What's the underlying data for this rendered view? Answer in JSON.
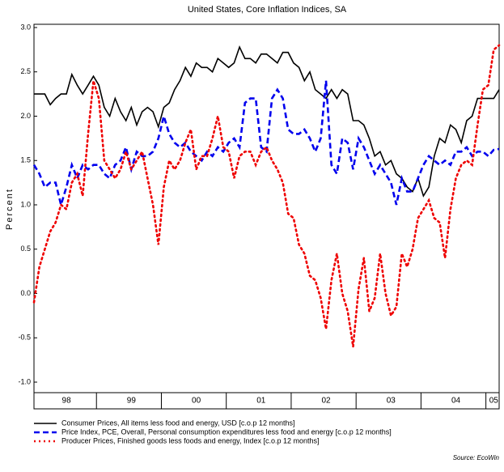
{
  "chart_data": {
    "type": "line",
    "subtitle": "United States, Core Inflation Indices, SA",
    "y_label": "Percent",
    "source": "Source: EcoWin",
    "categories": [
      null,
      null,
      null,
      null,
      null,
      null,
      "98",
      null,
      null,
      null,
      null,
      null,
      null,
      null,
      null,
      null,
      null,
      null,
      "99",
      null,
      null,
      null,
      null,
      null,
      null,
      null,
      null,
      null,
      null,
      null,
      "00",
      null,
      null,
      null,
      null,
      null,
      null,
      null,
      null,
      null,
      null,
      null,
      "01",
      null,
      null,
      null,
      null,
      null,
      null,
      null,
      null,
      null,
      null,
      null,
      "02",
      null,
      null,
      null,
      null,
      null,
      null,
      null,
      null,
      null,
      null,
      null,
      "03",
      null,
      null,
      null,
      null,
      null,
      null,
      null,
      null,
      null,
      null,
      null,
      "04",
      null,
      null,
      null,
      null,
      null,
      null,
      "05",
      null
    ],
    "ylim": [
      -1.0,
      3.0
    ],
    "yticks": [
      {
        "value": 3.0,
        "label": "3.0"
      },
      {
        "value": 2.5,
        "label": "2.5"
      },
      {
        "value": 2.0,
        "label": "2.0"
      },
      {
        "value": 1.5,
        "label": "1.5"
      },
      {
        "value": 1.0,
        "label": "1.0"
      },
      0.5,
      {
        "value": 0.0,
        "label": "0.0"
      },
      -0.5,
      {
        "value": -1.0,
        "label": "-1.0"
      }
    ],
    "series": [
      {
        "name": "Consumer Prices, All items less food and energy, USD [c.o.p 12 months]",
        "color": "#000000",
        "dash": "solid",
        "values": [
          2.25,
          2.25,
          2.25,
          2.13,
          2.2,
          2.25,
          2.25,
          2.47,
          2.35,
          2.25,
          2.35,
          2.45,
          2.35,
          2.1,
          2.0,
          2.2,
          2.05,
          1.95,
          2.1,
          1.9,
          2.05,
          2.1,
          2.05,
          1.88,
          2.1,
          2.15,
          2.3,
          2.4,
          2.55,
          2.45,
          2.6,
          2.55,
          2.55,
          2.5,
          2.65,
          2.6,
          2.55,
          2.6,
          2.78,
          2.65,
          2.65,
          2.6,
          2.7,
          2.7,
          2.65,
          2.6,
          2.72,
          2.72,
          2.6,
          2.55,
          2.4,
          2.5,
          2.3,
          2.25,
          2.2,
          2.3,
          2.2,
          2.3,
          2.25,
          1.95,
          1.95,
          1.9,
          1.75,
          1.55,
          1.6,
          1.45,
          1.5,
          1.35,
          1.3,
          1.2,
          1.15,
          1.3,
          1.1,
          1.2,
          1.55,
          1.75,
          1.7,
          1.9,
          1.85,
          1.7,
          1.95,
          2.0,
          2.2,
          2.2,
          2.2,
          2.2,
          2.3
        ]
      },
      {
        "name": "Price Index, PCE, Overall, Personal consumption expenditures less food and energy [c.o.p 12 months]",
        "color": "#0000ee",
        "dash": "dashed",
        "values": [
          1.45,
          1.35,
          1.2,
          1.25,
          1.25,
          1.0,
          1.2,
          1.45,
          1.3,
          1.45,
          1.4,
          1.45,
          1.45,
          1.35,
          1.3,
          1.45,
          1.5,
          1.65,
          1.4,
          1.6,
          1.55,
          1.55,
          1.6,
          1.75,
          2.0,
          1.8,
          1.7,
          1.65,
          1.7,
          1.6,
          1.55,
          1.5,
          1.6,
          1.55,
          1.65,
          1.6,
          1.7,
          1.75,
          1.65,
          2.15,
          2.2,
          2.2,
          1.65,
          1.6,
          2.2,
          2.3,
          2.2,
          1.85,
          1.8,
          1.8,
          1.85,
          1.75,
          1.6,
          1.75,
          2.4,
          1.45,
          1.35,
          1.75,
          1.7,
          1.4,
          1.75,
          1.65,
          1.5,
          1.35,
          1.45,
          1.35,
          1.25,
          1.0,
          1.3,
          1.15,
          1.15,
          1.3,
          1.45,
          1.55,
          1.5,
          1.45,
          1.5,
          1.45,
          1.6,
          1.6,
          1.65,
          1.55,
          1.6,
          1.6,
          1.55,
          1.62,
          1.63
        ]
      },
      {
        "name": "Producer Prices, Finished goods less foods and energy, Index [c.o.p 12 months]",
        "color": "#ee0000",
        "dash": "dotted",
        "values": [
          -0.1,
          0.3,
          0.5,
          0.7,
          0.8,
          1.0,
          0.95,
          1.25,
          1.35,
          1.1,
          1.8,
          2.4,
          2.2,
          1.5,
          1.4,
          1.3,
          1.4,
          1.6,
          1.4,
          1.5,
          1.6,
          1.3,
          1.0,
          0.55,
          1.2,
          1.5,
          1.4,
          1.5,
          1.7,
          1.85,
          1.4,
          1.55,
          1.55,
          1.75,
          2.0,
          1.65,
          1.6,
          1.3,
          1.55,
          1.6,
          1.6,
          1.45,
          1.6,
          1.65,
          1.5,
          1.4,
          1.25,
          0.9,
          0.85,
          0.55,
          0.45,
          0.2,
          0.15,
          -0.05,
          -0.4,
          0.15,
          0.45,
          0.0,
          -0.2,
          -0.6,
          0.05,
          0.4,
          -0.2,
          -0.05,
          0.45,
          0.0,
          -0.25,
          -0.15,
          0.45,
          0.3,
          0.5,
          0.85,
          0.95,
          1.05,
          0.85,
          0.8,
          0.4,
          0.95,
          1.3,
          1.45,
          1.5,
          1.45,
          1.9,
          2.3,
          2.35,
          2.75,
          2.8
        ]
      }
    ]
  }
}
